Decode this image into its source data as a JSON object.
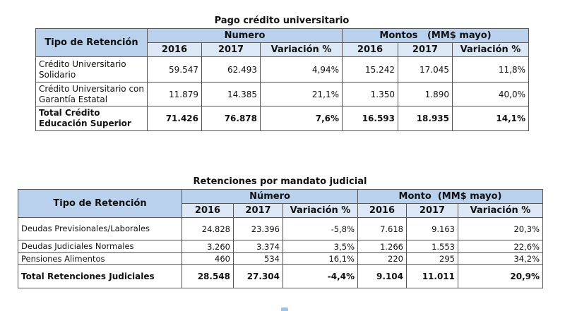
{
  "table1": {
    "title": "Pago crédito universitario",
    "header": {
      "first": "Tipo de Retención",
      "group1": "Numero",
      "group2": "Montos   (MM$ mayo)",
      "sub": [
        "2016",
        "2017",
        "Variación %",
        "2016",
        "2017",
        "Variación %"
      ]
    },
    "rows": [
      {
        "label": "Crédito Universitario Solidario",
        "values": [
          "59.547",
          "62.493",
          "4,94%",
          "15.242",
          "17.045",
          "11,8%"
        ]
      },
      {
        "label": "Crédito Universitario con Garantía Estatal",
        "values": [
          "11.879",
          "14.385",
          "21,1%",
          "1.350",
          "1.890",
          "40,0%"
        ]
      },
      {
        "label": "Total Crédito Educación Superior",
        "values": [
          "71.426",
          "76.878",
          "7,6%",
          "16.593",
          "18.935",
          "14,1%"
        ]
      }
    ]
  },
  "table2": {
    "title": "Retenciones por mandato judicial",
    "header": {
      "first": "Tipo de Retención",
      "group1": "Número",
      "group2": "Monto  (MM$ mayo)",
      "sub": [
        "2016",
        "2017",
        "Variación %",
        "2016",
        "2017",
        "Variación %"
      ]
    },
    "rows": [
      {
        "label": "Deudas Previsionales/Laborales",
        "values": [
          "24.828",
          "23.396",
          "-5,8%",
          "7.618",
          "9.163",
          "20,3%"
        ]
      },
      {
        "label": "Deudas Judiciales Normales",
        "values": [
          "3.260",
          "3.374",
          "3,5%",
          "1.266",
          "1.553",
          "22,6%"
        ]
      },
      {
        "label": "Pensiones Alimentos",
        "values": [
          "460",
          "534",
          "16,1%",
          "220",
          "295",
          "34,2%"
        ]
      },
      {
        "label": "Total Retenciones Judiciales",
        "values": [
          "28.548",
          "27.304",
          "-4,4%",
          "9.104",
          "11.011",
          "20,9%"
        ]
      }
    ]
  }
}
